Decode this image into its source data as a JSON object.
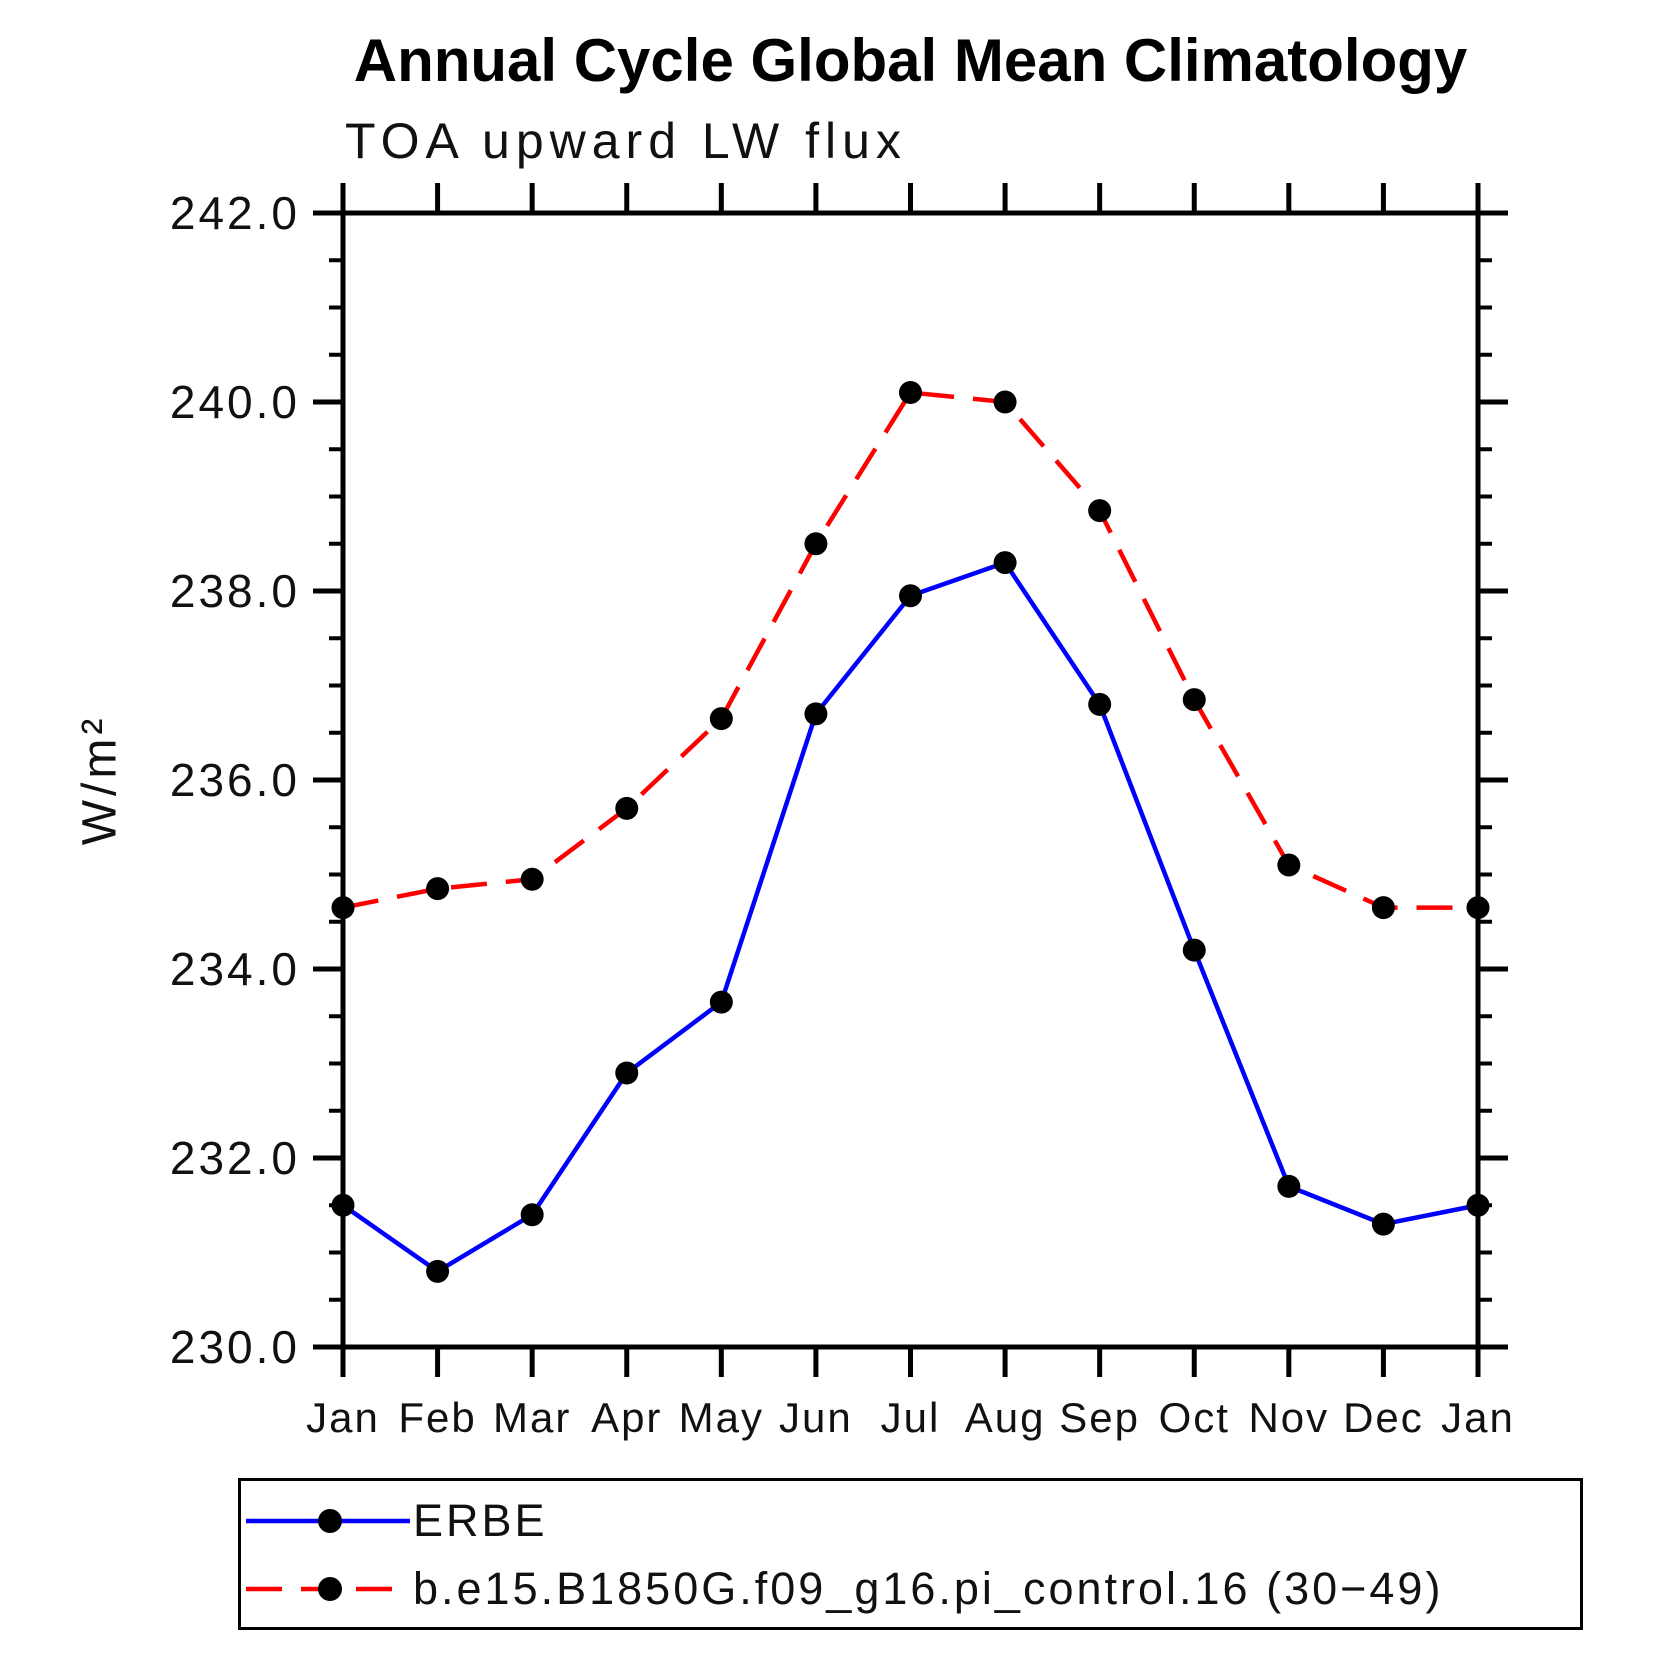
{
  "title": "Annual Cycle Global Mean Climatology",
  "subtitle": "TOA upward LW flux",
  "ylabel": "W/m²",
  "chart_data": {
    "type": "line",
    "categories": [
      "Jan",
      "Feb",
      "Mar",
      "Apr",
      "May",
      "Jun",
      "Jul",
      "Aug",
      "Sep",
      "Oct",
      "Nov",
      "Dec",
      "Jan"
    ],
    "series": [
      {
        "name": "ERBE",
        "color": "#0000ff",
        "style": "solid",
        "marker": "filled-circle",
        "values": [
          231.5,
          230.8,
          231.4,
          232.9,
          233.65,
          236.7,
          237.95,
          238.3,
          236.8,
          234.2,
          231.7,
          231.3,
          231.5
        ]
      },
      {
        "name": "b.e15.B1850G.f09_g16.pi_control.16 (30−49)",
        "color": "#ff0000",
        "style": "dashed",
        "marker": "filled-circle",
        "values": [
          234.65,
          234.85,
          234.95,
          235.7,
          236.65,
          238.5,
          240.1,
          240.0,
          238.85,
          236.85,
          235.1,
          234.65,
          234.65
        ]
      }
    ],
    "ylim": [
      230.0,
      242.0
    ],
    "ytick_major": 2.0,
    "ytick_minor": 0.5,
    "ytick_labels": [
      "230.0",
      "232.0",
      "234.0",
      "236.0",
      "238.0",
      "240.0",
      "242.0"
    ],
    "marker_color": "#000000",
    "axis_color": "#000000",
    "grid": false,
    "legend_position": "bottom-left"
  }
}
